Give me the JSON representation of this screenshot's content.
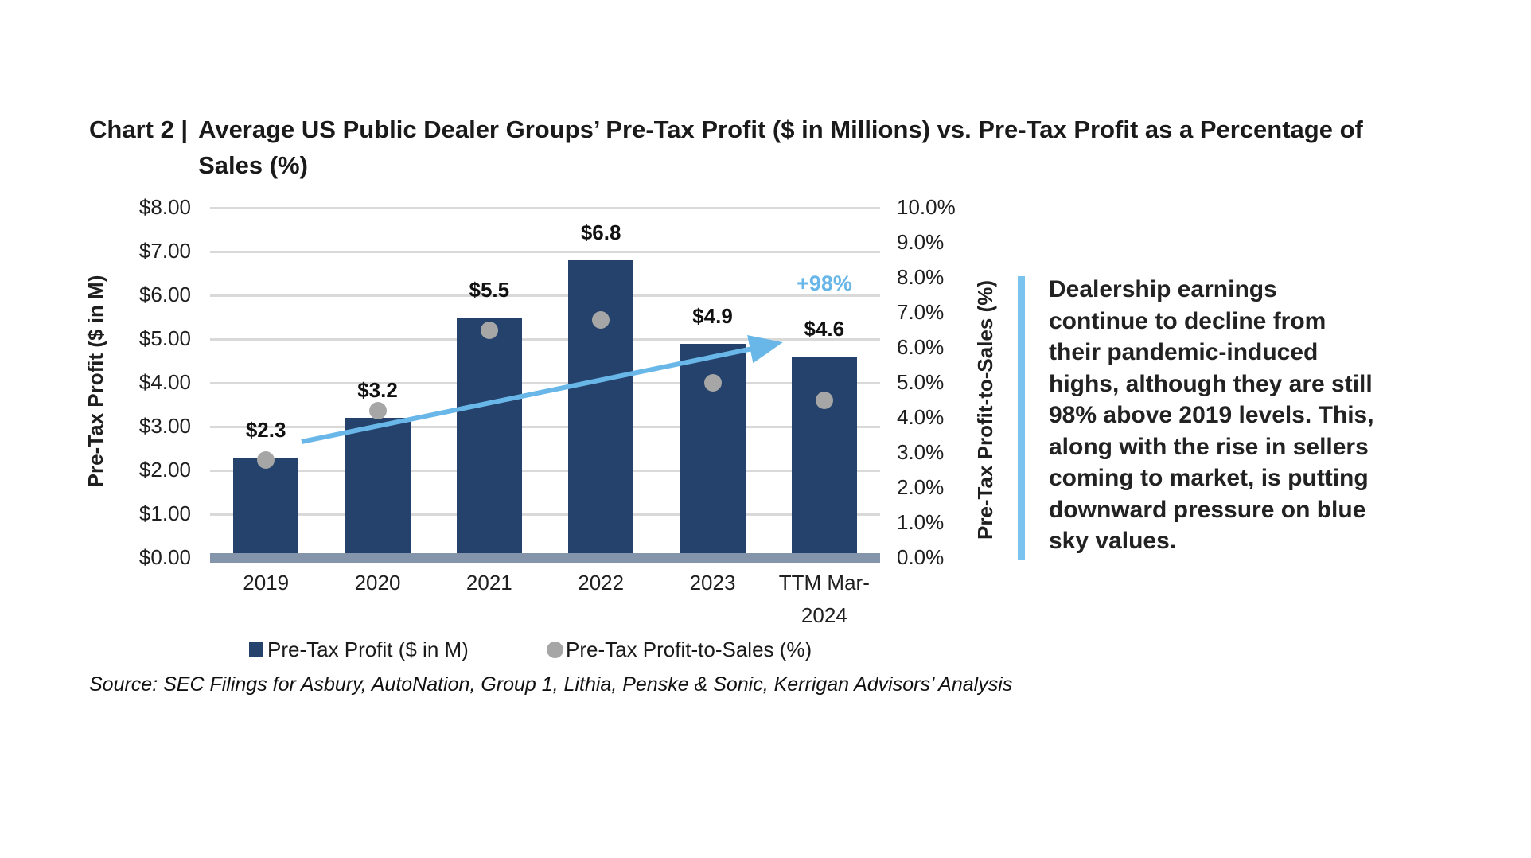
{
  "title": {
    "prefix": "Chart 2 |",
    "line1": "Average US Public Dealer Groups’ Pre-Tax Profit ($ in Millions) vs. Pre-Tax Profit as a Percentage of",
    "line2": "Sales (%)"
  },
  "chart_data": {
    "type": "bar",
    "subtype": "combo-bar-scatter",
    "categories": [
      "2019",
      "2020",
      "2021",
      "2022",
      "2023",
      "TTM Mar-\n2024"
    ],
    "series": [
      {
        "name": "Pre-Tax Profit ($ in M)",
        "type": "bar",
        "axis": "left",
        "values": [
          2.3,
          3.2,
          5.5,
          6.8,
          4.9,
          4.6
        ],
        "data_labels": [
          "$2.3",
          "$3.2",
          "$5.5",
          "$6.8",
          "$4.9",
          "$4.6"
        ],
        "color": "#24426c"
      },
      {
        "name": "Pre-Tax Profit-to-Sales (%)",
        "type": "scatter",
        "axis": "right",
        "values": [
          2.8,
          4.2,
          6.5,
          6.8,
          5.0,
          4.5
        ],
        "color": "#a6a6a6"
      }
    ],
    "left_axis": {
      "title": "Pre-Tax Profit ($ in M)",
      "min": 0,
      "max": 8,
      "step": 1,
      "tick_labels": [
        "$0.00",
        "$1.00",
        "$2.00",
        "$3.00",
        "$4.00",
        "$5.00",
        "$6.00",
        "$7.00",
        "$8.00"
      ]
    },
    "right_axis": {
      "title": "Pre-Tax Profit-to-Sales (%)",
      "min": 0,
      "max": 10,
      "step": 1,
      "tick_labels": [
        "0.0%",
        "1.0%",
        "2.0%",
        "3.0%",
        "4.0%",
        "5.0%",
        "6.0%",
        "7.0%",
        "8.0%",
        "9.0%",
        "10.0%"
      ]
    },
    "annotation": {
      "label": "+98%",
      "color": "#68b7e8"
    },
    "grid": true,
    "legend_position": "bottom",
    "legend": [
      "Pre-Tax Profit ($ in M)",
      "Pre-Tax Profit-to-Sales (%)"
    ]
  },
  "callout": {
    "text": "Dealership earnings\ncontinue to decline from\ntheir pandemic-induced\nhighs, although they are still\n98% above 2019 levels. This,\nalong with the rise in sellers\ncoming to market, is putting\ndownward pressure on blue\nsky values.",
    "accent_color": "#79c3ee"
  },
  "source": "Source: SEC Filings for Asbury, AutoNation, Group 1, Lithia, Penske & Sonic, Kerrigan Advisors’ Analysis",
  "colors": {
    "bar": "#24426c",
    "dot": "#a6a6a6",
    "gridline": "#d9d9d9",
    "baseline_band": "#8494aa",
    "accent_blue": "#68b7e8",
    "text": "#1a1a1a"
  }
}
